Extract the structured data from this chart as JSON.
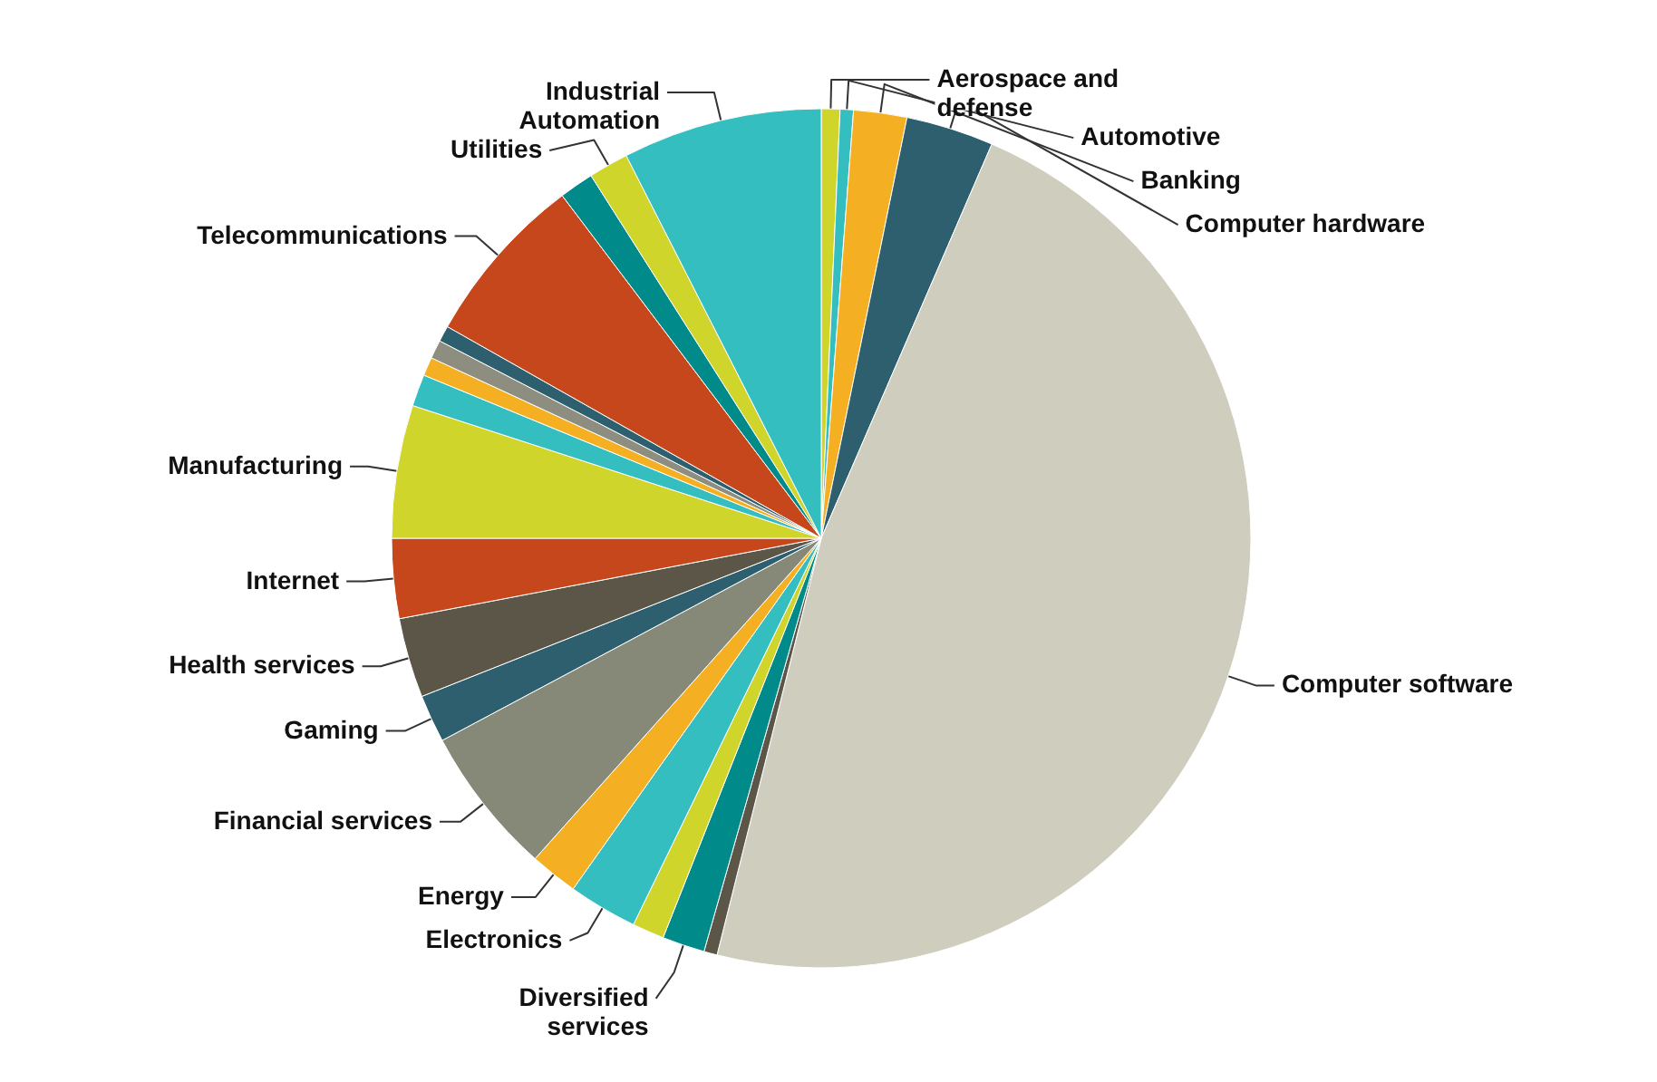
{
  "chart_data": {
    "type": "pie",
    "categories": [
      "Aerospace and defense",
      "Automotive",
      "Banking",
      "Computer hardware",
      "Computer software",
      null,
      "Diversified services",
      null,
      "Electronics",
      "Energy",
      "Financial services",
      "Gaming",
      "Health services",
      "Internet",
      "Manufacturing",
      null,
      null,
      null,
      null,
      "Telecommunications",
      null,
      "Utilities",
      "Industrial Automation"
    ],
    "values": [
      0.7,
      0.5,
      2.0,
      3.3,
      47.4,
      0.5,
      1.6,
      1.2,
      2.6,
      1.8,
      5.6,
      1.8,
      3.0,
      3.0,
      5.0,
      1.2,
      0.7,
      0.7,
      0.6,
      6.5,
      1.3,
      1.5,
      7.5
    ],
    "colors": [
      "#cfd52a",
      "#35bec0",
      "#f4af22",
      "#2d5f6e",
      "#cfcdbd",
      "#5b5647",
      "#008a8a",
      "#cfd52a",
      "#35bec0",
      "#f4af22",
      "#868878",
      "#2d5f6e",
      "#5b5647",
      "#c6471b",
      "#cfd52a",
      "#35bec0",
      "#f4af22",
      "#8e8e80",
      "#2d5f6e",
      "#c6471b",
      "#008a8a",
      "#cfd52a",
      "#35bec0"
    ]
  }
}
